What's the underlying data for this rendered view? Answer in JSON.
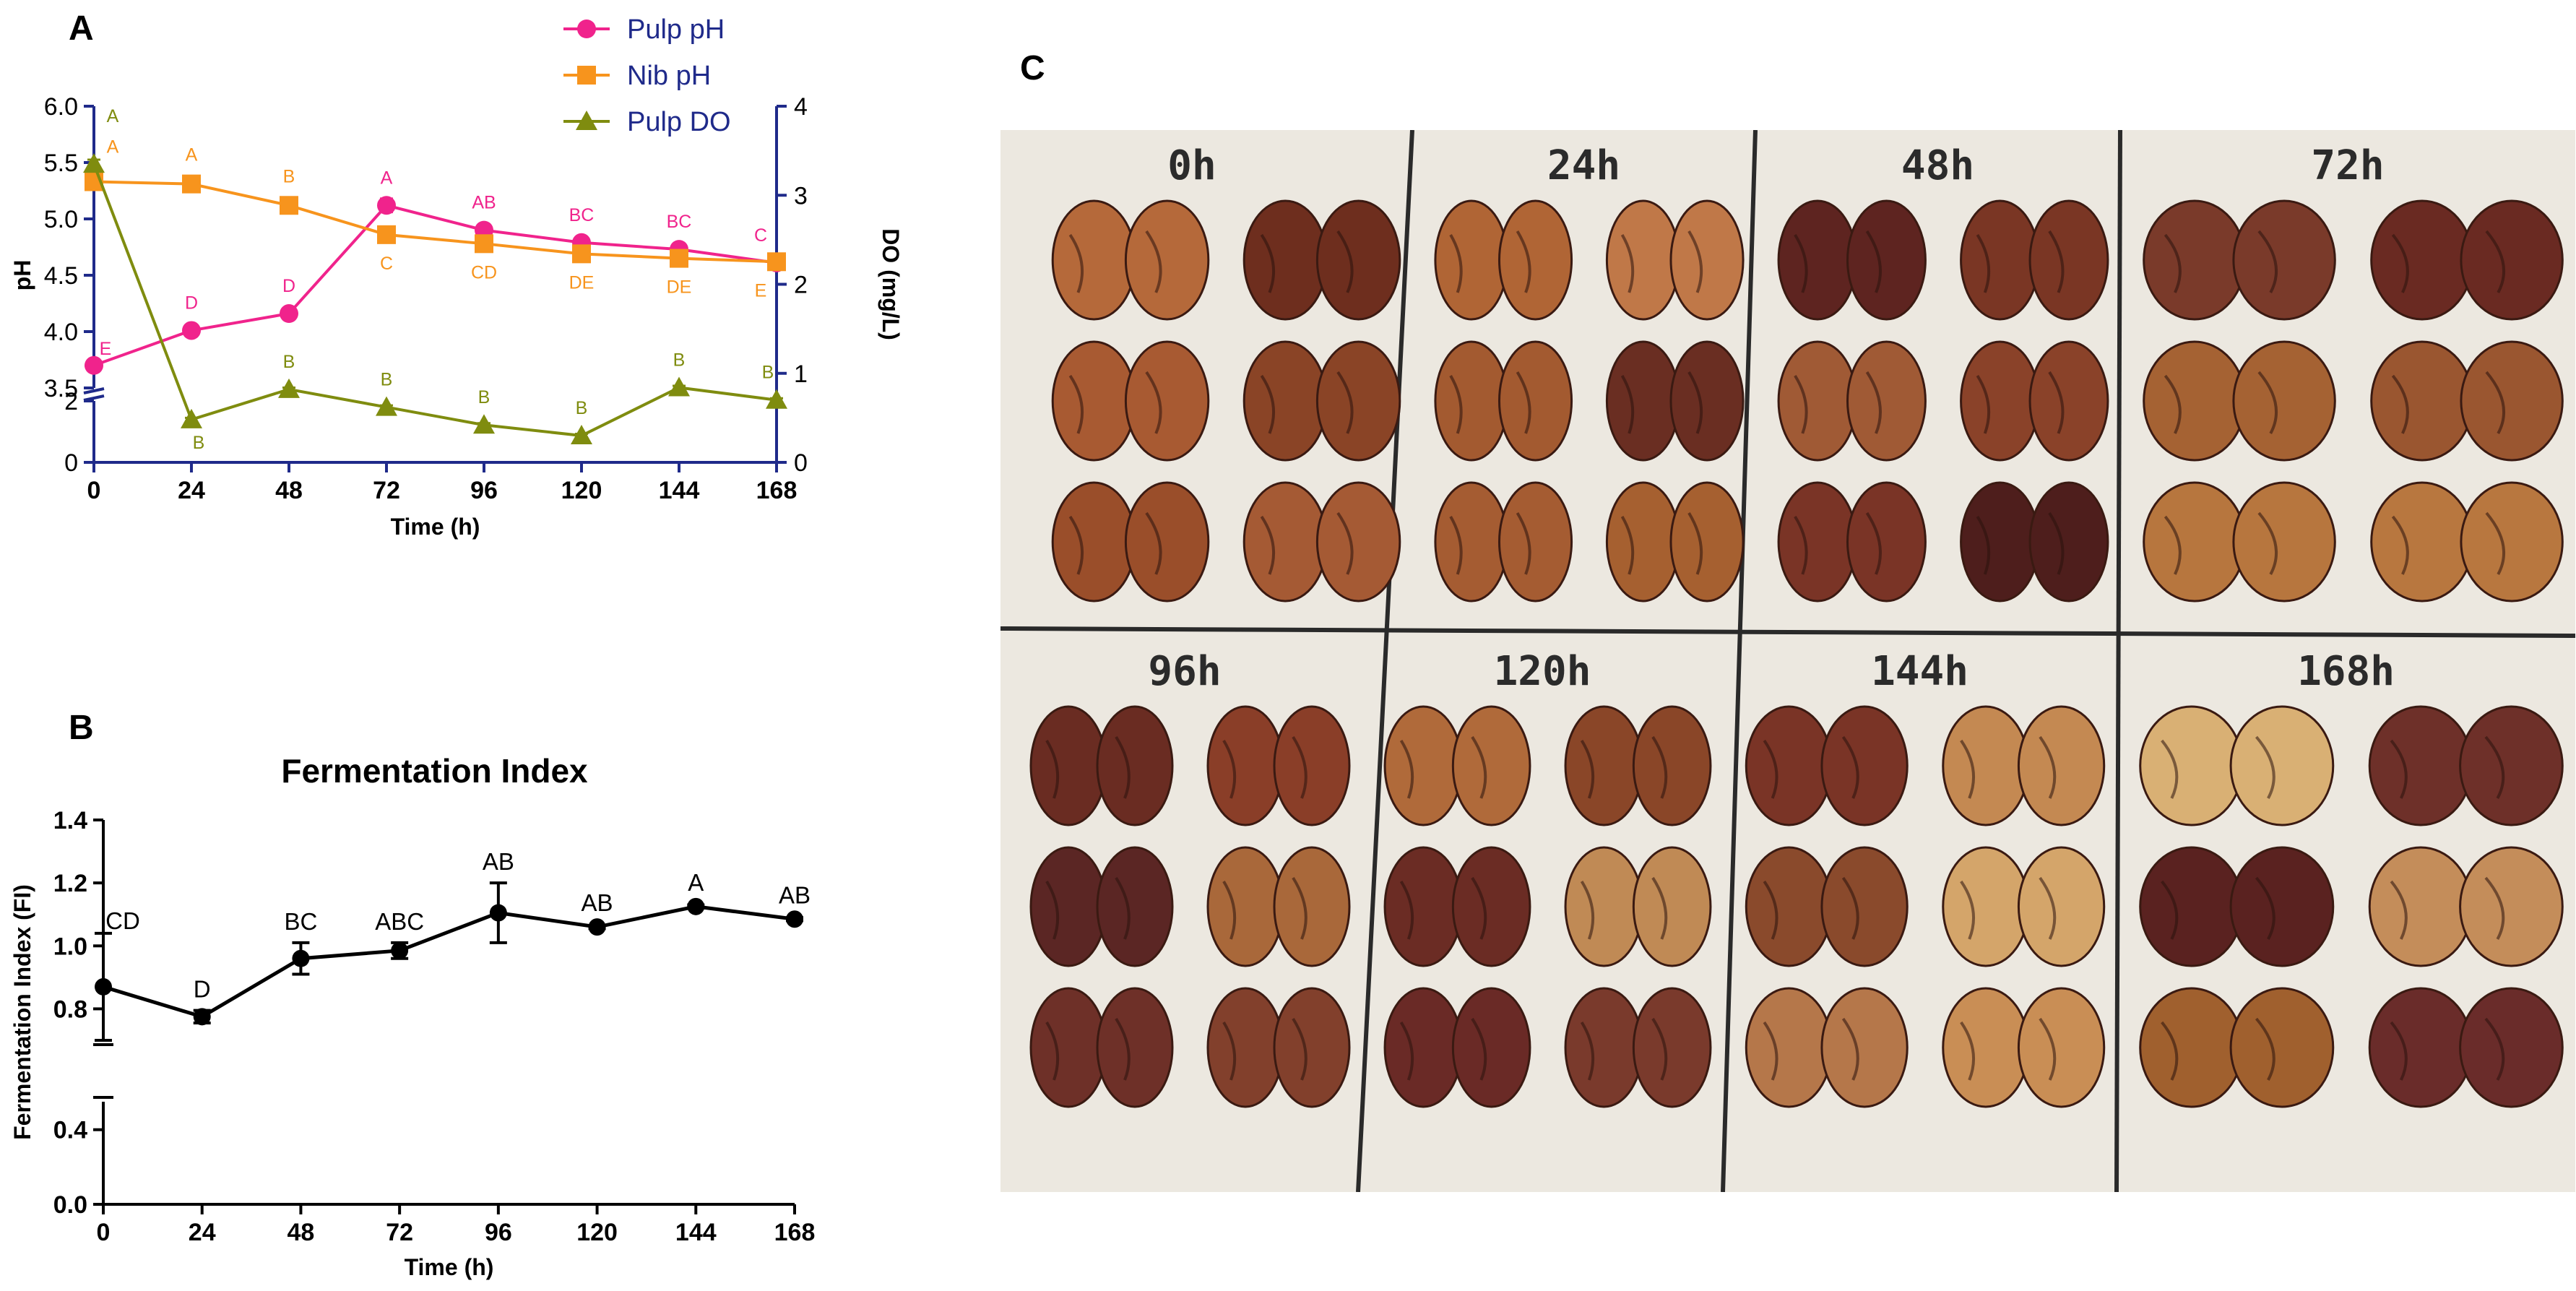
{
  "panels": {
    "a_label": "A",
    "b_label": "B",
    "c_label": "C"
  },
  "colors": {
    "pulp_ph": "#f0238c",
    "nib_ph": "#f7941d",
    "pulp_do": "#7f8c0f",
    "axis_a": "#1f2a8a",
    "legend_text": "#1f2a8a",
    "fi_line": "#000000"
  },
  "chart_data": [
    {
      "type": "line",
      "panel": "A",
      "title": "",
      "xlabel": "Time (h)",
      "ylabel": "pH",
      "y2label": "DO (mg/L)",
      "x": [
        0,
        24,
        48,
        72,
        96,
        120,
        144,
        168
      ],
      "xticks": [
        "0",
        "24",
        "48",
        "72",
        "96",
        "120",
        "144",
        "168"
      ],
      "yticks_upper": [
        "3.5",
        "4.0",
        "4.5",
        "5.0",
        "5.5",
        "6.0"
      ],
      "yticks_lower": [
        "0",
        "2"
      ],
      "ylim_upper": [
        3.5,
        6.0
      ],
      "ylim_lower": [
        0,
        2
      ],
      "y2ticks": [
        "0",
        "1",
        "2",
        "3",
        "4"
      ],
      "y2lim": [
        0,
        4
      ],
      "legend_position": "top-right",
      "series": [
        {
          "name": "Pulp pH",
          "axis": "y1",
          "marker": "circle",
          "values": [
            3.7,
            4.01,
            4.16,
            5.12,
            4.9,
            4.79,
            4.73,
            4.61
          ],
          "errors": [
            0.02,
            0.02,
            0.02,
            0.06,
            0.05,
            0.05,
            0.03,
            0.02
          ],
          "labels": [
            "E",
            "D",
            "D",
            "A",
            "AB",
            "BC",
            "BC",
            "C"
          ]
        },
        {
          "name": "Nib pH",
          "axis": "y1",
          "marker": "square",
          "values": [
            5.33,
            5.31,
            5.12,
            4.86,
            4.78,
            4.69,
            4.65,
            4.62
          ],
          "errors": [
            0.02,
            0.02,
            0.02,
            0.02,
            0.02,
            0.02,
            0.02,
            0.02
          ],
          "labels": [
            "A",
            "A",
            "B",
            "C",
            "CD",
            "DE",
            "DE",
            "E"
          ]
        },
        {
          "name": "Pulp DO",
          "axis": "y2",
          "marker": "triangle",
          "values": [
            3.35,
            0.48,
            0.82,
            0.62,
            0.42,
            0.3,
            0.84,
            0.7
          ],
          "errors": [
            0.05,
            0.02,
            0.02,
            0.02,
            0.02,
            0.02,
            0.02,
            0.02
          ],
          "labels": [
            "A",
            "B",
            "B",
            "B",
            "B",
            "B",
            "B",
            "B"
          ]
        }
      ]
    },
    {
      "type": "line",
      "panel": "B",
      "title": "Fermentation Index",
      "xlabel": "Time (h)",
      "ylabel": "Fermentation Index (FI)",
      "x": [
        0,
        24,
        48,
        72,
        96,
        120,
        144,
        168
      ],
      "xticks": [
        "0",
        "24",
        "48",
        "72",
        "96",
        "120",
        "144",
        "168"
      ],
      "yticks_upper": [
        "0.8",
        "1.0",
        "1.2",
        "1.4"
      ],
      "yticks_lower": [
        "0.0",
        "0.4"
      ],
      "ylim_upper": [
        0.7,
        1.4
      ],
      "ylim_lower": [
        0.0,
        0.55
      ],
      "series": [
        {
          "name": "Fermentation Index",
          "marker": "circle",
          "values": [
            0.87,
            0.775,
            0.96,
            0.985,
            1.105,
            1.06,
            1.125,
            1.085
          ],
          "errors": [
            0.17,
            0.02,
            0.05,
            0.025,
            0.095,
            0.005,
            0.005,
            0.005
          ],
          "labels": [
            "CD",
            "D",
            "BC",
            "ABC",
            "AB",
            "AB",
            "A",
            "AB"
          ]
        }
      ]
    }
  ],
  "photo": {
    "grid_labels": [
      "0h",
      "24h",
      "48h",
      "72h",
      "96h",
      "120h",
      "144h",
      "168h"
    ],
    "bean_tones": [
      [
        "#b5693a",
        "#6e2e1e",
        "#a85a32",
        "#8a4426",
        "#9a4e2a",
        "#a55a34"
      ],
      [
        "#b06535",
        "#c07848",
        "#a35a30",
        "#6a2e22",
        "#a55c32",
        "#a66030"
      ],
      [
        "#5e2420",
        "#7a3624",
        "#a05a35",
        "#8a4229",
        "#7a3426",
        "#4e1e1c"
      ],
      [
        "#7a3a2a",
        "#6a2a22",
        "#a56233",
        "#9a5630",
        "#b7763e",
        "#b8773f"
      ],
      [
        "#6a2c22",
        "#8a3e28",
        "#5b2624",
        "#a9683a",
        "#6e3028",
        "#82402c"
      ],
      [
        "#b06a3a",
        "#8a4628",
        "#6b2c24",
        "#c08a55",
        "#6a2a26",
        "#7a3a2c"
      ],
      [
        "#7a3426",
        "#c48952",
        "#8a4a2c",
        "#d4a56a",
        "#b5774a",
        "#c98e55"
      ],
      [
        "#d9b074",
        "#6e3029",
        "#5a2220",
        "#c48d5a",
        "#a0602e",
        "#6a2c2a"
      ]
    ]
  }
}
